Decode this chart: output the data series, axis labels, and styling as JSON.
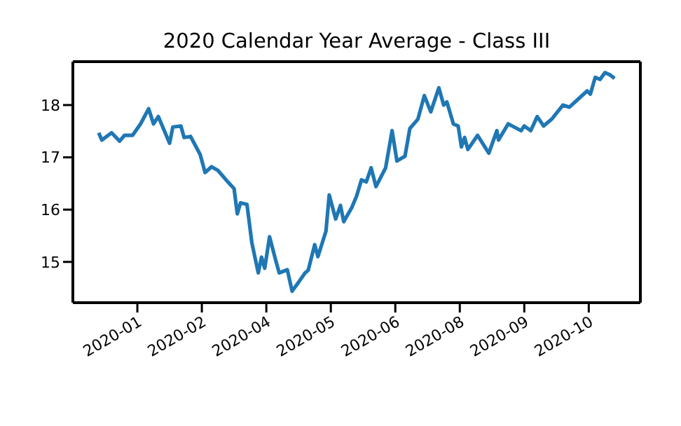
{
  "chart_data": {
    "type": "line",
    "title": "2020 Calendar Year Average - Class III",
    "x": [
      "2019-12-23",
      "2019-12-25",
      "2019-12-31",
      "2020-01-05",
      "2020-01-08",
      "2020-01-13",
      "2020-01-18",
      "2020-01-23",
      "2020-01-26",
      "2020-01-29",
      "2020-02-05",
      "2020-02-07",
      "2020-02-12",
      "2020-02-14",
      "2020-02-18",
      "2020-02-24",
      "2020-02-27",
      "2020-03-02",
      "2020-03-06",
      "2020-03-11",
      "2020-03-16",
      "2020-03-18",
      "2020-03-20",
      "2020-03-24",
      "2020-03-27",
      "2020-03-31",
      "2020-04-02",
      "2020-04-04",
      "2020-04-07",
      "2020-04-11",
      "2020-04-13",
      "2020-04-18",
      "2020-04-21",
      "2020-04-25",
      "2020-04-29",
      "2020-05-01",
      "2020-05-05",
      "2020-05-07",
      "2020-05-12",
      "2020-05-14",
      "2020-05-18",
      "2020-05-21",
      "2020-05-23",
      "2020-05-28",
      "2020-05-31",
      "2020-06-03",
      "2020-06-06",
      "2020-06-09",
      "2020-06-12",
      "2020-06-18",
      "2020-06-22",
      "2020-06-25",
      "2020-06-30",
      "2020-07-03",
      "2020-07-08",
      "2020-07-12",
      "2020-07-16",
      "2020-07-21",
      "2020-07-24",
      "2020-07-26",
      "2020-07-30",
      "2020-08-02",
      "2020-08-04",
      "2020-08-06",
      "2020-08-08",
      "2020-08-14",
      "2020-08-21",
      "2020-08-26",
      "2020-08-27",
      "2020-09-02",
      "2020-09-10",
      "2020-09-12",
      "2020-09-16",
      "2020-09-20",
      "2020-09-24",
      "2020-09-29",
      "2020-10-06",
      "2020-10-10",
      "2020-10-16",
      "2020-10-21",
      "2020-10-23",
      "2020-10-26",
      "2020-10-29",
      "2020-11-01",
      "2020-11-04",
      "2020-11-07"
    ],
    "series": [
      {
        "color": "#1f77b4",
        "values": [
          17.47,
          17.33,
          17.47,
          17.31,
          17.42,
          17.42,
          17.64,
          17.93,
          17.64,
          17.78,
          17.27,
          17.58,
          17.6,
          17.38,
          17.4,
          17.05,
          16.71,
          16.82,
          16.75,
          16.57,
          16.4,
          15.92,
          16.13,
          16.1,
          15.37,
          14.79,
          15.09,
          14.88,
          15.48,
          15.01,
          14.79,
          14.85,
          14.44,
          14.61,
          14.79,
          14.84,
          15.33,
          15.1,
          15.59,
          16.28,
          15.82,
          16.08,
          15.77,
          16.04,
          16.26,
          16.57,
          16.53,
          16.8,
          16.44,
          16.8,
          17.51,
          16.93,
          17.02,
          17.55,
          17.73,
          18.18,
          17.87,
          18.33,
          18,
          18.06,
          17.64,
          17.6,
          17.2,
          17.38,
          17.15,
          17.42,
          17.08,
          17.51,
          17.33,
          17.64,
          17.51,
          17.6,
          17.51,
          17.78,
          17.6,
          17.73,
          18,
          17.96,
          18.13,
          18.27,
          18.21,
          18.53,
          18.49,
          18.62,
          18.58,
          18.51
        ]
      }
    ],
    "xlim": [
      "2019-12-07",
      "2020-11-23"
    ],
    "xticks": [
      {
        "value": "2020-01-16",
        "label": "2020-01"
      },
      {
        "value": "2020-02-25",
        "label": "2020-02"
      },
      {
        "value": "2020-04-05",
        "label": "2020-04"
      },
      {
        "value": "2020-05-15",
        "label": "2020-05"
      },
      {
        "value": "2020-06-24",
        "label": "2020-06"
      },
      {
        "value": "2020-08-03",
        "label": "2020-08"
      },
      {
        "value": "2020-09-12",
        "label": "2020-09"
      },
      {
        "value": "2020-10-22",
        "label": "2020-10"
      }
    ],
    "ylim": [
      14.22,
      18.83
    ],
    "yticks": [
      15,
      16,
      17,
      18
    ],
    "marker": "none",
    "line_style": "solid"
  }
}
